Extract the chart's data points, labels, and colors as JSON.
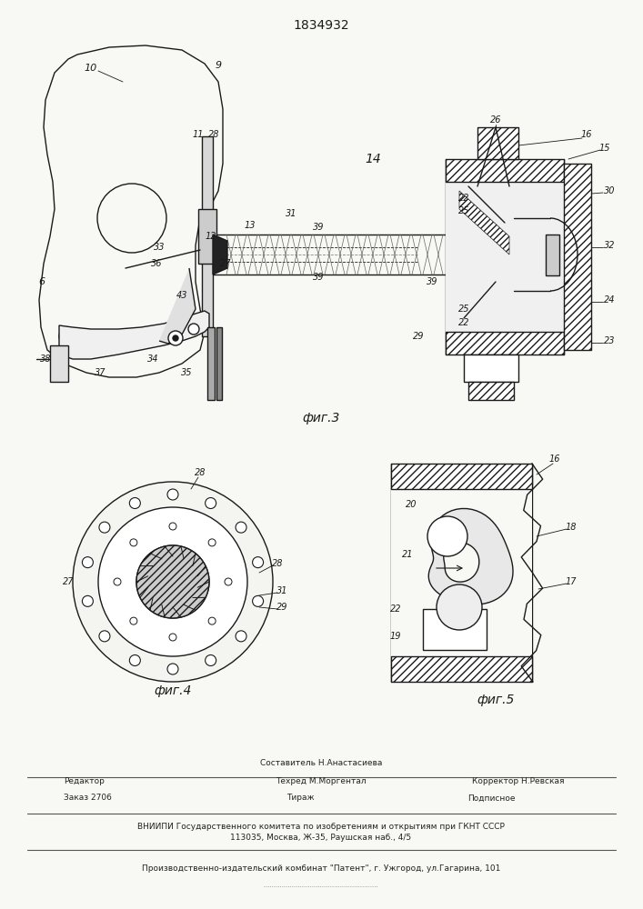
{
  "patent_number": "1834932",
  "bg": "#f8f8f4",
  "lc": "#1a1a1a",
  "fig3_label": "фиг.3",
  "fig4_label": "фиг.4",
  "fig5_label": "фиг.5"
}
